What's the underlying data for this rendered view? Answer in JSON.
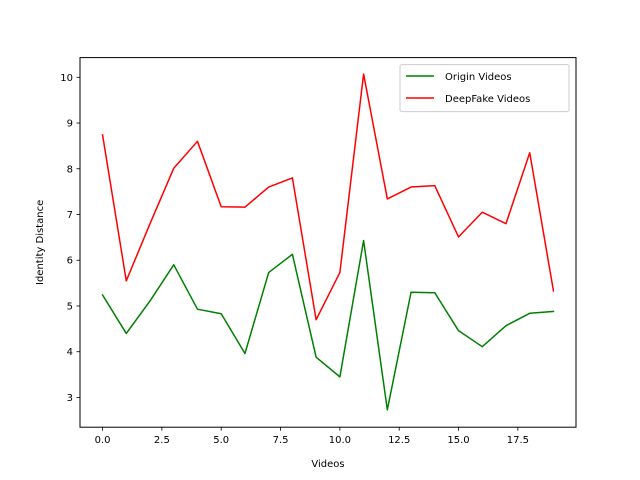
{
  "chart_data": {
    "type": "line",
    "xlabel": "Videos",
    "ylabel": "Identity Distance",
    "xlim": [
      -0.95,
      19.95
    ],
    "ylim": [
      2.35,
      10.43
    ],
    "xticks": [
      0.0,
      2.5,
      5.0,
      7.5,
      10.0,
      12.5,
      15.0,
      17.5
    ],
    "xtick_labels": [
      "0.0",
      "2.5",
      "5.0",
      "7.5",
      "10.0",
      "12.5",
      "15.0",
      "17.5"
    ],
    "yticks": [
      3,
      4,
      5,
      6,
      7,
      8,
      9,
      10
    ],
    "ytick_labels": [
      "3",
      "4",
      "5",
      "6",
      "7",
      "8",
      "9",
      "10"
    ],
    "grid": false,
    "legend_position": "top-right",
    "x": [
      0,
      1,
      2,
      3,
      4,
      5,
      6,
      7,
      8,
      9,
      10,
      11,
      12,
      13,
      14,
      15,
      16,
      17,
      18,
      19
    ],
    "series": [
      {
        "name": "Origin Videos",
        "color": "#008000",
        "values": [
          5.24,
          4.4,
          5.11,
          5.9,
          4.93,
          4.83,
          3.96,
          5.73,
          6.13,
          3.88,
          3.45,
          6.43,
          2.73,
          5.3,
          5.29,
          4.46,
          4.11,
          4.57,
          4.84,
          4.88
        ]
      },
      {
        "name": "DeepFake Videos",
        "color": "#ff0000",
        "values": [
          8.74,
          5.55,
          6.8,
          8.01,
          8.6,
          7.17,
          7.16,
          7.6,
          7.8,
          4.7,
          5.73,
          10.07,
          7.34,
          7.6,
          7.63,
          6.51,
          7.05,
          6.8,
          8.35,
          5.33
        ]
      }
    ]
  }
}
